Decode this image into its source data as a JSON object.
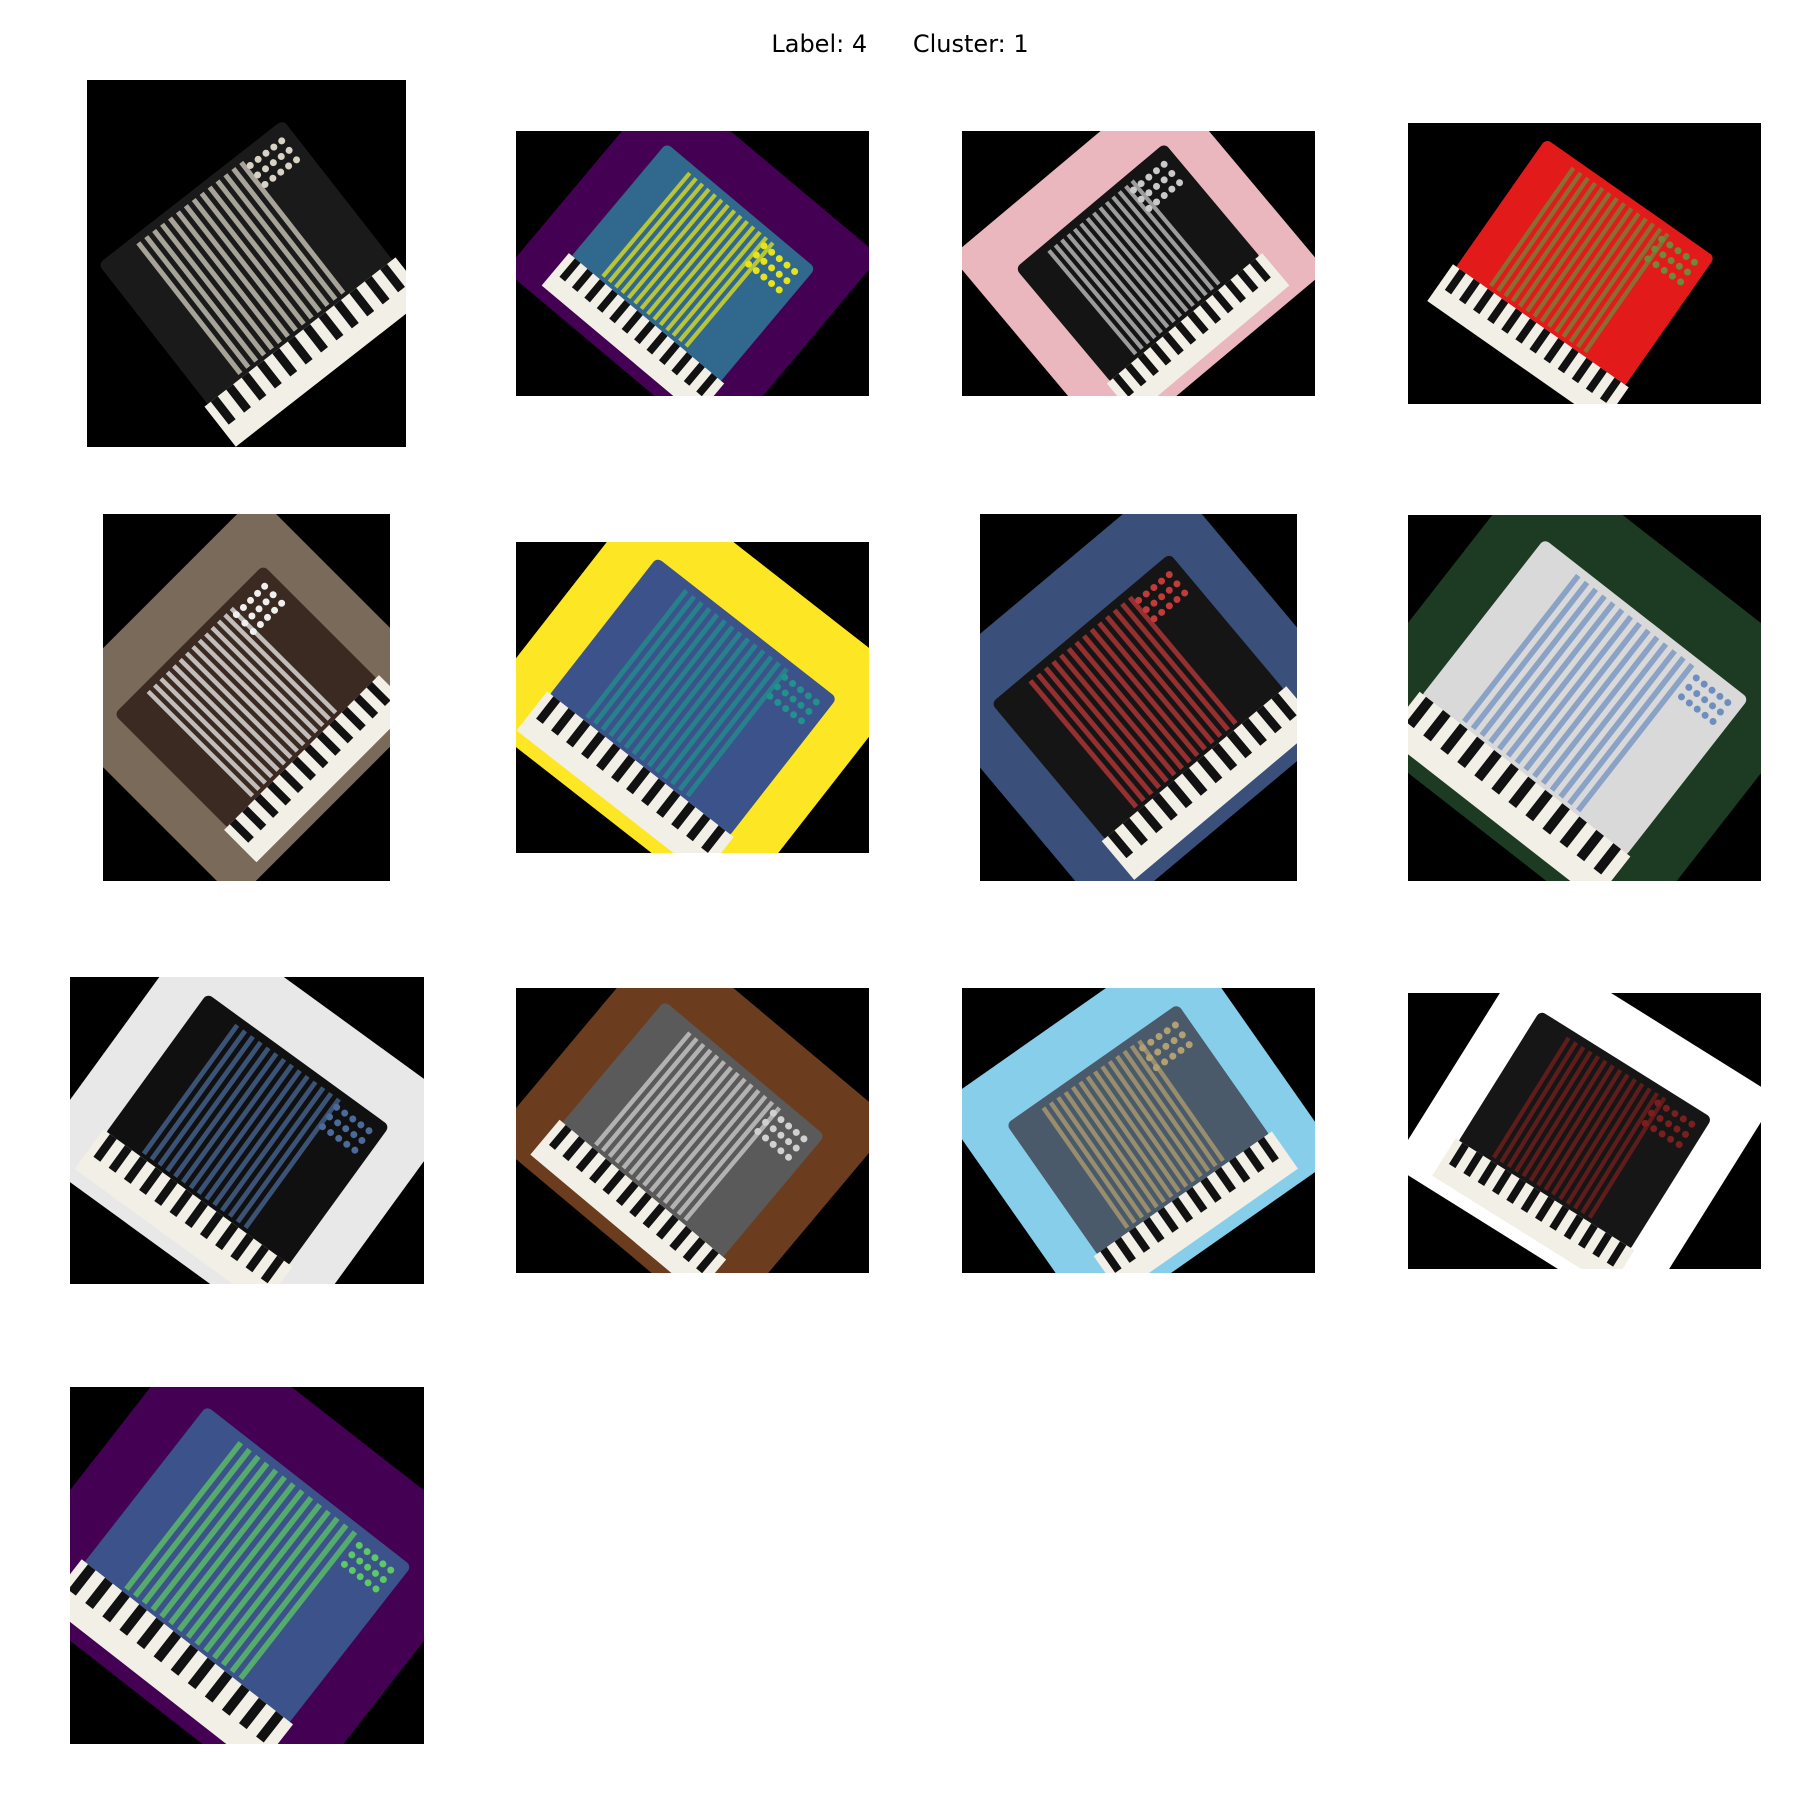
{
  "figure": {
    "title_label": "Label: 4",
    "title_cluster": "Cluster: 1",
    "images": [
      {
        "icon": "accordion-photo",
        "palette": "natural",
        "bg": "#000000",
        "body": "#1a1a1a",
        "accent": "#d8d2c4"
      },
      {
        "icon": "accordion-photo",
        "palette": "viridis",
        "bg": "#440154",
        "body": "#31688e",
        "accent": "#e5e419"
      },
      {
        "icon": "accordion-photo",
        "palette": "natural",
        "bg": "#e9b7bd",
        "body": "#141414",
        "accent": "#c9c9c9"
      },
      {
        "icon": "accordion-photo",
        "palette": "posterized",
        "bg": "#000000",
        "body": "#e21a1a",
        "accent": "#6b8a3a"
      },
      {
        "icon": "accordion-photo",
        "palette": "natural",
        "bg": "#7a6a5a",
        "body": "#3b2a22",
        "accent": "#efefef"
      },
      {
        "icon": "accordion-photo",
        "palette": "viridis",
        "bg": "#fde725",
        "body": "#3b528b",
        "accent": "#21918c"
      },
      {
        "icon": "accordion-photo",
        "palette": "natural",
        "bg": "#3a4f7a",
        "body": "#151515",
        "accent": "#c23a3a"
      },
      {
        "icon": "accordion-photo",
        "palette": "natural",
        "bg": "#1d3b22",
        "body": "#d9d9d9",
        "accent": "#6d8fbf"
      },
      {
        "icon": "accordion-photo",
        "palette": "natural",
        "bg": "#e8e8e8",
        "body": "#101010",
        "accent": "#4a6a9a"
      },
      {
        "icon": "accordion-photo",
        "palette": "natural",
        "bg": "#6b3d1e",
        "body": "#5a5a5a",
        "accent": "#d0d0d0"
      },
      {
        "icon": "accordion-photo",
        "palette": "natural",
        "bg": "#87ceeb",
        "body": "#4a5a6a",
        "accent": "#b3a070"
      },
      {
        "icon": "accordion-photo",
        "palette": "natural",
        "bg": "#ffffff",
        "body": "#161616",
        "accent": "#7a1e1e"
      },
      {
        "icon": "accordion-photo",
        "palette": "viridis",
        "bg": "#440154",
        "body": "#3b528b",
        "accent": "#5ec962"
      }
    ]
  }
}
